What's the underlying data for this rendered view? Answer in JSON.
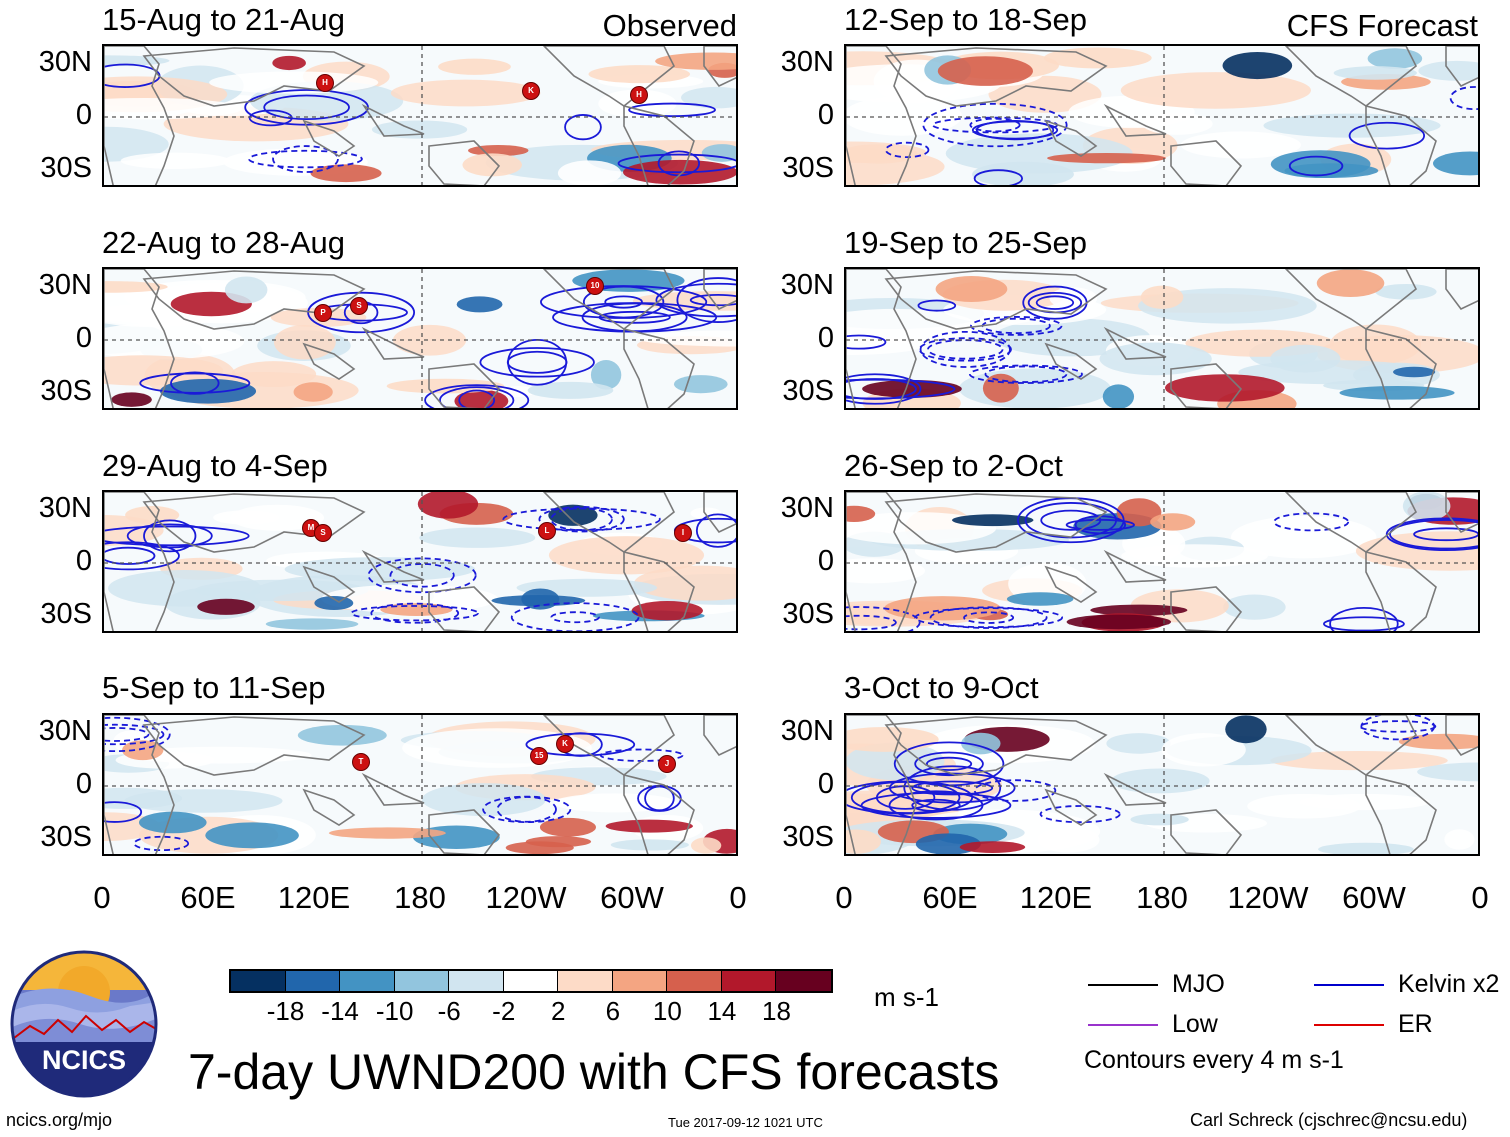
{
  "header": {
    "observed_label": "Observed",
    "forecast_label": "CFS Forecast"
  },
  "chart_data": {
    "type": "heatmap",
    "title": "7-day UWND200 with CFS forecasts",
    "variable": "200-hPa zonal wind (7-day mean)",
    "units": "m s-1",
    "lat_ticks": [
      "30N",
      "0",
      "30S"
    ],
    "lon_ticks": [
      "0",
      "60E",
      "120E",
      "180",
      "120W",
      "60W",
      "0"
    ],
    "colorbar": {
      "ticks": [
        "-18",
        "-14",
        "-10",
        "-6",
        "-2",
        "2",
        "6",
        "10",
        "14",
        "18"
      ],
      "colors": [
        "#053061",
        "#2166ac",
        "#4393c3",
        "#92c5de",
        "#d1e5f0",
        "#ffffff",
        "#fddbc7",
        "#f4a582",
        "#d6604d",
        "#b2182b",
        "#67001f"
      ]
    },
    "observed_panels": [
      {
        "period": "15-Aug to 21-Aug",
        "storms": [
          "H",
          "K",
          "H"
        ]
      },
      {
        "period": "22-Aug to 28-Aug",
        "storms": [
          "P",
          "S",
          "10"
        ]
      },
      {
        "period": "29-Aug to 4-Sep",
        "storms": [
          "M",
          "S",
          "L",
          "I"
        ]
      },
      {
        "period": "5-Sep to 11-Sep",
        "storms": [
          "T",
          "15",
          "K",
          "J"
        ]
      }
    ],
    "forecast_panels": [
      {
        "period": "12-Sep to 18-Sep"
      },
      {
        "period": "19-Sep to 25-Sep"
      },
      {
        "period": "26-Sep to 2-Oct"
      },
      {
        "period": "3-Oct to 9-Oct"
      }
    ],
    "legend": {
      "items": [
        {
          "label": "MJO",
          "color": "#000000"
        },
        {
          "label": "Kelvin x2",
          "color": "#0000cc"
        },
        {
          "label": "Low",
          "color": "#9933cc"
        },
        {
          "label": "ER",
          "color": "#dd0000"
        }
      ],
      "contour_note": "Contours every 4 m s-1"
    }
  },
  "footer": {
    "logo_text": "NCICS",
    "url": "ncics.org/mjo",
    "timestamp": "Tue 2017-09-12 1021 UTC",
    "author": "Carl Schreck (cjschrec@ncsu.edu)"
  }
}
